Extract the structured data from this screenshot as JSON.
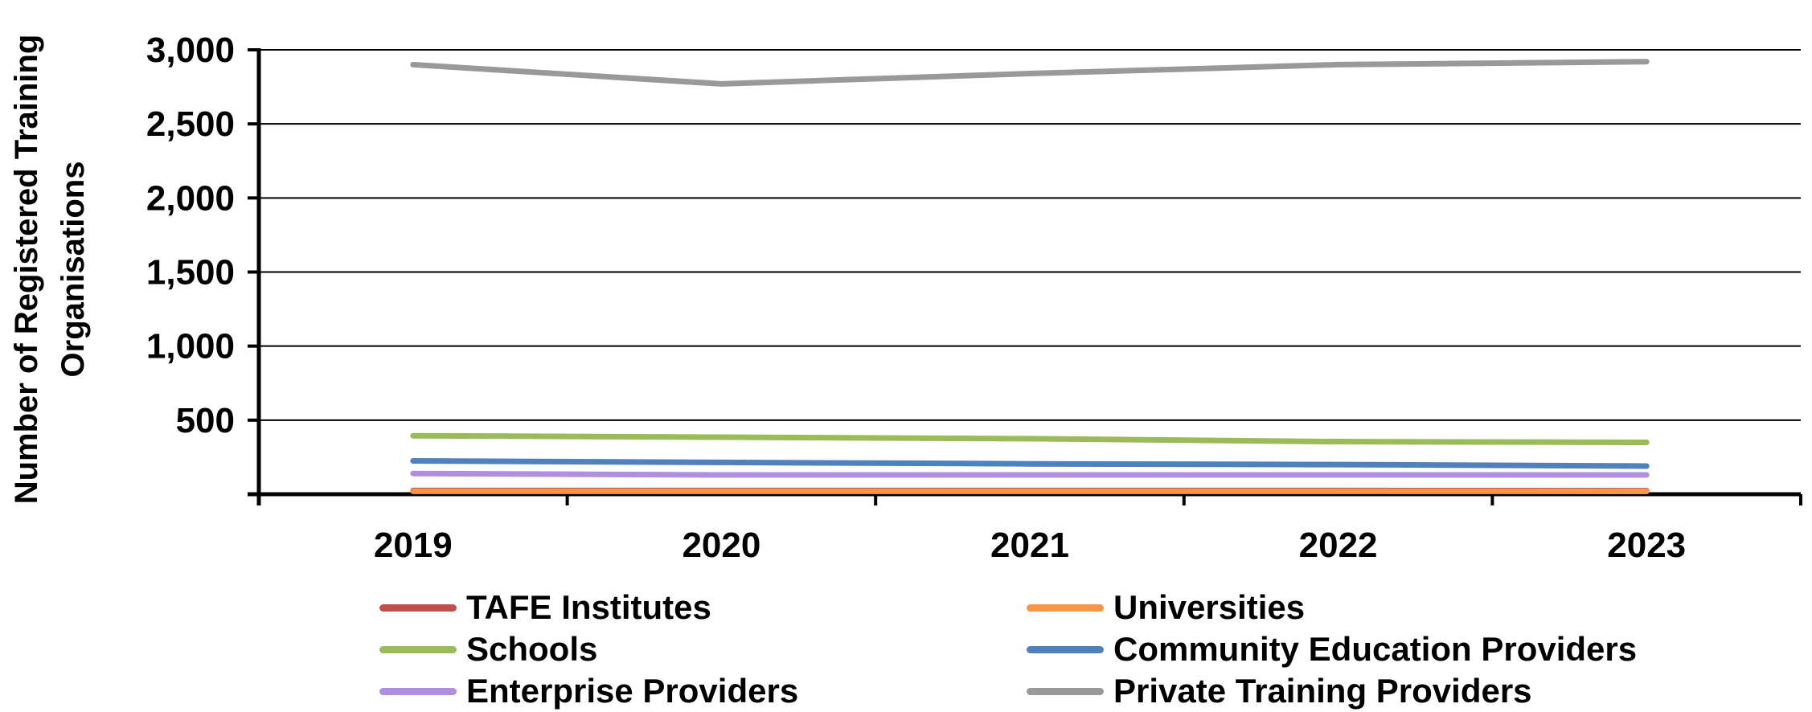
{
  "chart_data": {
    "type": "line",
    "title": "",
    "xlabel": "",
    "ylabel": "Number of Registered Training Organisations",
    "categories": [
      "2019",
      "2020",
      "2021",
      "2022",
      "2023"
    ],
    "ylim": [
      0,
      3000
    ],
    "yticks": [
      0,
      500,
      1000,
      1500,
      2000,
      2500,
      3000
    ],
    "ytick_labels": [
      "",
      "500",
      "1,000",
      "1,500",
      "2,000",
      "2,500",
      "3,000"
    ],
    "grid": true,
    "legend_position": "bottom",
    "series": [
      {
        "name": "TAFE Institutes",
        "color": "#C0504D",
        "values": [
          25,
          25,
          25,
          25,
          24
        ]
      },
      {
        "name": "Universities",
        "color": "#F79646",
        "values": [
          20,
          20,
          20,
          20,
          19
        ]
      },
      {
        "name": "Schools",
        "color": "#9BBB59",
        "values": [
          395,
          385,
          375,
          355,
          350
        ]
      },
      {
        "name": "Community Education Providers",
        "color": "#4F81BD",
        "values": [
          225,
          215,
          205,
          200,
          190
        ]
      },
      {
        "name": "Enterprise Providers",
        "color": "#B18FE0",
        "values": [
          140,
          130,
          130,
          130,
          130
        ]
      },
      {
        "name": "Private Training Providers",
        "color": "#999999",
        "values": [
          2900,
          2770,
          2840,
          2900,
          2920
        ]
      }
    ]
  }
}
